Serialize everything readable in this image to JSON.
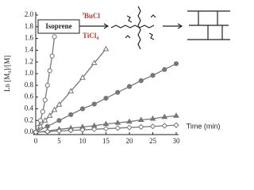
{
  "chart_data": {
    "type": "line",
    "y_label": "Ln [M₀]/[M]",
    "x_label": "Time (min)",
    "xlim": [
      0,
      30
    ],
    "xticks": [
      0,
      5,
      10,
      15,
      20,
      25,
      30
    ],
    "ylim": [
      0,
      2
    ],
    "yticks": [
      {
        "value": 0,
        "label": "0.0"
      },
      {
        "value": 0.2,
        "label": "0.2"
      },
      {
        "value": 0.4,
        "label": "0.4"
      },
      {
        "value": 0.6,
        "label": "0.6"
      },
      {
        "value": 0.8,
        "label": "0.8"
      },
      {
        "value": 1,
        "label": "1.0"
      },
      {
        "value": 1.2,
        "label": "1.2"
      },
      {
        "value": 1.4,
        "label": "1.4"
      },
      {
        "value": 1.6,
        "label": "1.6"
      },
      {
        "value": 1.8,
        "label": "1.8"
      },
      {
        "value": 2,
        "label": "2.0"
      }
    ],
    "series": [
      {
        "color": "#777777",
        "marker": "circle",
        "filled": false,
        "x": [
          0,
          0.5,
          1,
          1.5,
          2,
          2.5,
          3,
          3.5,
          4
        ],
        "values": [
          0,
          0.08,
          0.2,
          0.35,
          0.55,
          0.8,
          1.05,
          1.3,
          1.63
        ]
      },
      {
        "color": "#777777",
        "marker": "triangle",
        "filled": false,
        "x": [
          0,
          1,
          2,
          3,
          4,
          5,
          7.5,
          10,
          12.5,
          15
        ],
        "values": [
          0,
          0.1,
          0.2,
          0.28,
          0.38,
          0.47,
          0.7,
          0.93,
          1.18,
          1.42
        ]
      },
      {
        "color": "#777777",
        "marker": "circle",
        "filled": true,
        "x": [
          0,
          2.5,
          5,
          7.5,
          10,
          12.5,
          15,
          17.5,
          20,
          22.5,
          25,
          27.5,
          30
        ],
        "values": [
          0,
          0.1,
          0.2,
          0.3,
          0.4,
          0.48,
          0.58,
          0.68,
          0.78,
          0.88,
          0.97,
          1.07,
          1.17
        ]
      },
      {
        "color": "#777777",
        "marker": "triangle",
        "filled": true,
        "x": [
          0,
          2.5,
          5,
          7.5,
          10,
          12.5,
          15,
          17.5,
          20,
          22.5,
          25,
          27.5,
          30
        ],
        "values": [
          0,
          0.02,
          0.05,
          0.07,
          0.09,
          0.11,
          0.14,
          0.16,
          0.18,
          0.21,
          0.23,
          0.26,
          0.28
        ]
      },
      {
        "color": "#777777",
        "marker": "diamond",
        "filled": false,
        "x": [
          0,
          2.5,
          5,
          7.5,
          10,
          12.5,
          15,
          17.5,
          20,
          22.5,
          25,
          27.5,
          30
        ],
        "values": [
          0,
          0.01,
          0.02,
          0.03,
          0.04,
          0.05,
          0.06,
          0.07,
          0.08,
          0.09,
          0.1,
          0.11,
          0.12
        ]
      }
    ],
    "scheme": {
      "monomer": "Isoprene",
      "initiator_prefix": "t",
      "initiator": "BuCl",
      "coinitiator": "TiCl",
      "coinitiator_subscript": "4"
    }
  }
}
